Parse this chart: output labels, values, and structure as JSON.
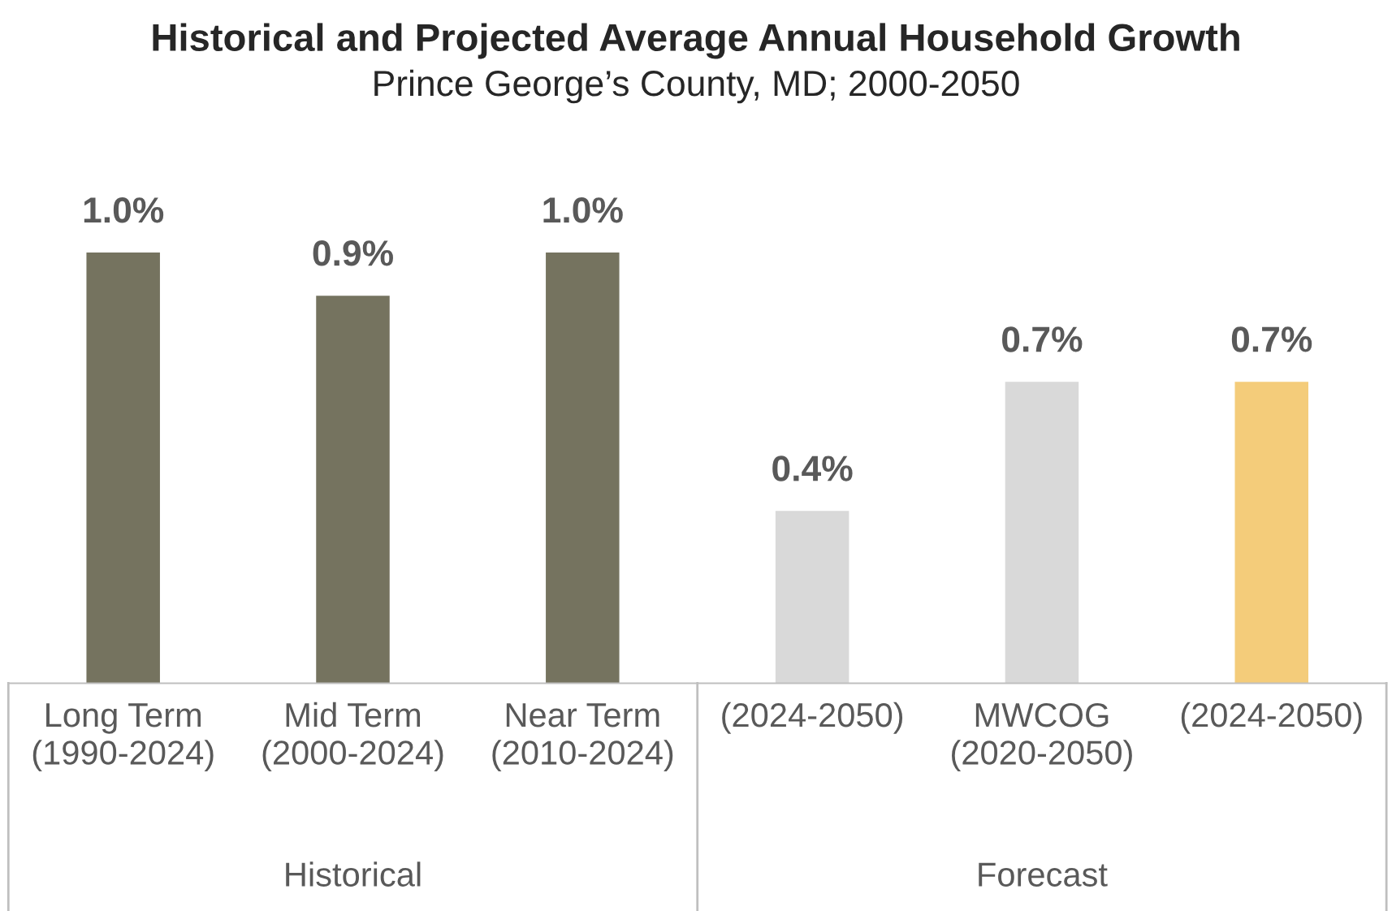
{
  "chart_data": {
    "type": "bar",
    "title": "Historical and Projected Average Annual Household Growth",
    "subtitle": "Prince George’s County, MD; 2000-2050",
    "categories": [
      "Long Term\n(1990-2024)",
      "Mid Term\n(2000-2024)",
      "Near Term\n(2010-2024)",
      "(2024-2050)",
      "MWCOG\n(2020-2050)",
      "(2024-2050)"
    ],
    "values": [
      1.0,
      0.9,
      1.0,
      0.4,
      0.7,
      0.7
    ],
    "value_labels": [
      "1.0%",
      "0.9%",
      "1.0%",
      "0.4%",
      "0.7%",
      "0.7%"
    ],
    "colors": [
      "#75735f",
      "#75735f",
      "#75735f",
      "#d9d9d9",
      "#d9d9d9",
      "#f4cc7a"
    ],
    "annotations": [
      "Historical",
      "Forecast"
    ],
    "legend": false
  }
}
